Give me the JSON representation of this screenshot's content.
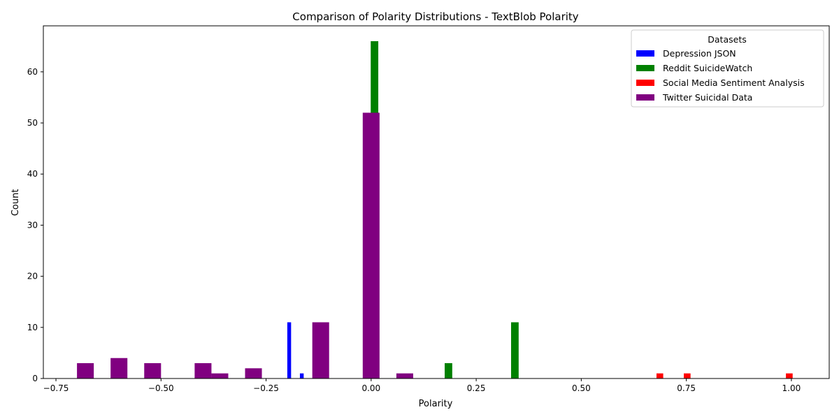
{
  "chart_data": {
    "type": "bar",
    "title": "Comparison of Polarity Distributions - TextBlob Polarity",
    "xlabel": "Polarity",
    "ylabel": "Count",
    "xlim": [
      -0.78,
      1.09
    ],
    "ylim": [
      0,
      69
    ],
    "xticks": [
      -0.75,
      -0.5,
      -0.25,
      0.0,
      0.25,
      0.5,
      0.75,
      1.0
    ],
    "xtick_labels": [
      "−0.75",
      "−0.50",
      "−0.25",
      "0.00",
      "0.25",
      "0.50",
      "0.75",
      "1.00"
    ],
    "yticks": [
      0,
      10,
      20,
      30,
      40,
      50,
      60
    ],
    "yticks_labels": [
      "0",
      "10",
      "20",
      "30",
      "40",
      "50",
      "60"
    ],
    "grid": false,
    "legend": {
      "title": "Datasets",
      "placement": "top-right"
    },
    "series": [
      {
        "name": "Depression JSON",
        "color": "#0000ff",
        "bin_width": 0.009,
        "bins": [
          {
            "x": -0.195,
            "count": 11
          },
          {
            "x": -0.165,
            "count": 1
          }
        ]
      },
      {
        "name": "Reddit SuicideWatch",
        "color": "#008000",
        "bin_width": 0.018,
        "bins": [
          {
            "x": 0.008,
            "count": 66
          },
          {
            "x": 0.184,
            "count": 3
          },
          {
            "x": 0.342,
            "count": 11
          }
        ]
      },
      {
        "name": "Social Media Sentiment Analysis",
        "color": "#ff0000",
        "bin_width": 0.016,
        "bins": [
          {
            "x": 0.687,
            "count": 1
          },
          {
            "x": 0.752,
            "count": 1
          },
          {
            "x": 0.995,
            "count": 1
          }
        ]
      },
      {
        "name": "Twitter Suicidal Data",
        "color": "#800080",
        "bin_width": 0.04,
        "bins": [
          {
            "x": -0.68,
            "count": 3
          },
          {
            "x": -0.6,
            "count": 4
          },
          {
            "x": -0.52,
            "count": 3
          },
          {
            "x": -0.4,
            "count": 3
          },
          {
            "x": -0.36,
            "count": 1
          },
          {
            "x": -0.28,
            "count": 2
          },
          {
            "x": -0.12,
            "count": 11
          },
          {
            "x": 0.0,
            "count": 52
          },
          {
            "x": 0.08,
            "count": 1
          }
        ]
      }
    ]
  }
}
